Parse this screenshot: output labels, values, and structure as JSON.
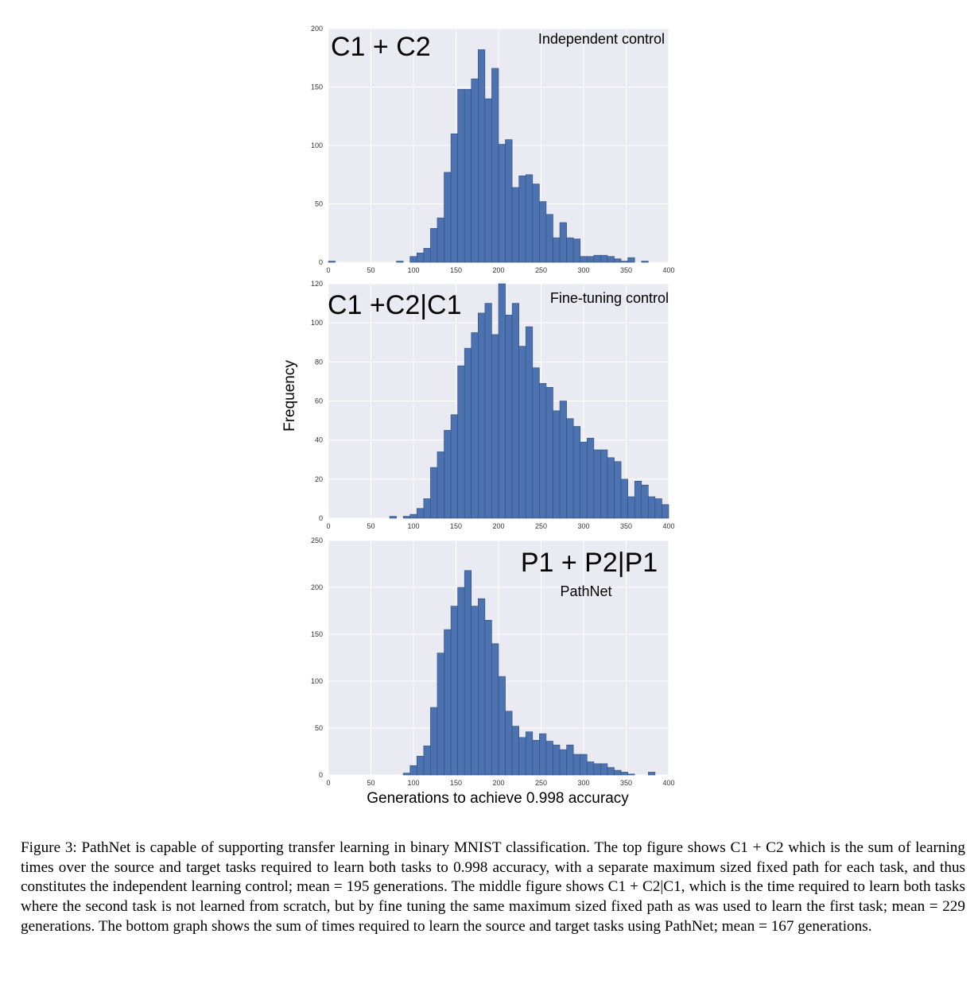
{
  "figure": {
    "ylabel": "Frequency",
    "xlabel": "Generations to achieve 0.998 accuracy"
  },
  "colors": {
    "bar": "#4C72B0",
    "bar_edge": "#2F4F7F",
    "plot_background": "#EAEAF2",
    "grid": "#FFFFFF"
  },
  "chart_data": [
    {
      "type": "bar",
      "title": "C1 + C2",
      "subtitle": "Independent control",
      "xlabel": "",
      "ylabel": "Frequency",
      "xlim": [
        0,
        400
      ],
      "ylim": [
        0,
        200
      ],
      "xticks": [
        0,
        50,
        100,
        150,
        200,
        250,
        300,
        350,
        400
      ],
      "yticks": [
        0,
        50,
        100,
        150,
        200
      ],
      "bin_width": 8,
      "bin_starts": [
        0,
        8,
        16,
        24,
        32,
        40,
        48,
        56,
        64,
        72,
        80,
        88,
        96,
        104,
        112,
        120,
        128,
        136,
        144,
        152,
        160,
        168,
        176,
        184,
        192,
        200,
        208,
        216,
        224,
        232,
        240,
        248,
        256,
        264,
        272,
        280,
        288,
        296,
        304,
        312,
        320,
        328,
        336,
        344,
        352,
        360,
        368,
        376,
        384,
        392
      ],
      "values": [
        1,
        0,
        0,
        0,
        0,
        0,
        0,
        0,
        0,
        0,
        1,
        0,
        5,
        8,
        12,
        29,
        38,
        77,
        110,
        148,
        148,
        157,
        182,
        140,
        166,
        101,
        105,
        64,
        74,
        75,
        67,
        52,
        41,
        21,
        34,
        21,
        20,
        5,
        5,
        6,
        6,
        5,
        3,
        1,
        4,
        0,
        1,
        0,
        0,
        0
      ],
      "grid": true
    },
    {
      "type": "bar",
      "title": "C1 +C2|C1",
      "subtitle": "Fine-tuning control",
      "xlabel": "",
      "ylabel": "Frequency",
      "xlim": [
        0,
        400
      ],
      "ylim": [
        0,
        120
      ],
      "xticks": [
        0,
        50,
        100,
        150,
        200,
        250,
        300,
        350,
        400
      ],
      "yticks": [
        0,
        20,
        40,
        60,
        80,
        100,
        120
      ],
      "bin_width": 8,
      "bin_starts": [
        0,
        8,
        16,
        24,
        32,
        40,
        48,
        56,
        64,
        72,
        80,
        88,
        96,
        104,
        112,
        120,
        128,
        136,
        144,
        152,
        160,
        168,
        176,
        184,
        192,
        200,
        208,
        216,
        224,
        232,
        240,
        248,
        256,
        264,
        272,
        280,
        288,
        296,
        304,
        312,
        320,
        328,
        336,
        344,
        352,
        360,
        368,
        376,
        384,
        392
      ],
      "values": [
        0,
        0,
        0,
        0,
        0,
        0,
        0,
        0,
        0,
        1,
        0,
        1,
        2,
        5,
        10,
        26,
        34,
        45,
        53,
        78,
        87,
        95,
        105,
        110,
        94,
        120,
        104,
        110,
        88,
        98,
        77,
        69,
        67,
        55,
        60,
        51,
        47,
        39,
        41,
        35,
        35,
        31,
        29,
        20,
        11,
        19,
        17,
        11,
        10,
        7
      ],
      "grid": true
    },
    {
      "type": "bar",
      "title": "P1 + P2|P1",
      "subtitle": "PathNet",
      "xlabel": "Generations to achieve 0.998 accuracy",
      "ylabel": "Frequency",
      "xlim": [
        0,
        400
      ],
      "ylim": [
        0,
        250
      ],
      "xticks": [
        0,
        50,
        100,
        150,
        200,
        250,
        300,
        350,
        400
      ],
      "yticks": [
        0,
        50,
        100,
        150,
        200,
        250
      ],
      "bin_width": 8,
      "bin_starts": [
        0,
        8,
        16,
        24,
        32,
        40,
        48,
        56,
        64,
        72,
        80,
        88,
        96,
        104,
        112,
        120,
        128,
        136,
        144,
        152,
        160,
        168,
        176,
        184,
        192,
        200,
        208,
        216,
        224,
        232,
        240,
        248,
        256,
        264,
        272,
        280,
        288,
        296,
        304,
        312,
        320,
        328,
        336,
        344,
        352,
        360,
        368,
        376,
        384,
        392
      ],
      "values": [
        0,
        0,
        0,
        0,
        0,
        0,
        0,
        0,
        0,
        0,
        0,
        2,
        10,
        20,
        31,
        72,
        130,
        155,
        180,
        200,
        218,
        180,
        188,
        165,
        140,
        105,
        68,
        52,
        40,
        46,
        37,
        44,
        36,
        32,
        27,
        32,
        22,
        22,
        14,
        12,
        12,
        8,
        5,
        3,
        1,
        0,
        0,
        3,
        0,
        0
      ],
      "grid": true
    }
  ],
  "caption": "Figure 3: PathNet is capable of supporting transfer learning in binary MNIST classification. The top figure shows C1 + C2 which is the sum of learning times over the source and target tasks required to learn both tasks to 0.998 accuracy, with a separate maximum sized fixed path for each task, and thus constitutes the independent learning control; mean = 195 generations. The middle figure shows C1 + C2|C1, which is the time required to learn both tasks where the second task is not learned from scratch, but by fine tuning the same maximum sized fixed path as was used to learn the first task; mean = 229 generations. The bottom graph shows the sum of times required to learn the source and target tasks using PathNet; mean = 167 generations."
}
